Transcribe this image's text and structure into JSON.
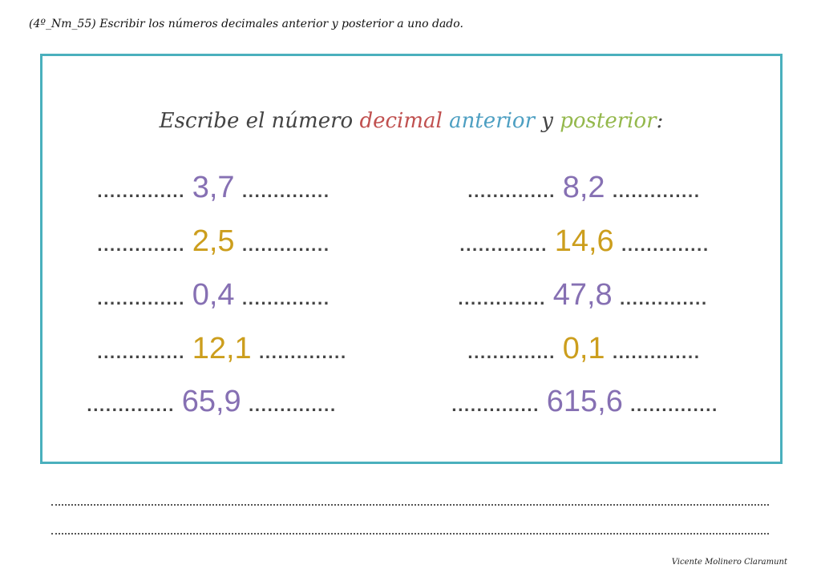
{
  "header": "(4º_Nm_55) Escribir los números decimales anterior y posterior a uno dado.",
  "title": {
    "part1": "Escribe el número ",
    "decimal": "decimal",
    "anterior": "anterior",
    "y": " y ",
    "posterior": "posterior",
    "colon": ":"
  },
  "dots": "..............",
  "left_column": [
    {
      "value": "3,7",
      "color": "#8670b3"
    },
    {
      "value": "2,5",
      "color": "#cc9e1d"
    },
    {
      "value": "0,4",
      "color": "#8670b3"
    },
    {
      "value": "12,1",
      "color": "#cc9e1d"
    },
    {
      "value": "65,9",
      "color": "#8670b3"
    }
  ],
  "right_column": [
    {
      "value": "8,2",
      "color": "#8670b3"
    },
    {
      "value": "14,6",
      "color": "#cc9e1d"
    },
    {
      "value": "47,8",
      "color": "#8670b3"
    },
    {
      "value": "0,1",
      "color": "#cc9e1d"
    },
    {
      "value": "615,6",
      "color": "#8670b3"
    }
  ],
  "footer": "Vicente Molinero Claramunt",
  "colors": {
    "frame": "#4ab0bd",
    "decimal": "#c0504f",
    "anterior": "#4d9fc2",
    "posterior": "#94b84c"
  }
}
